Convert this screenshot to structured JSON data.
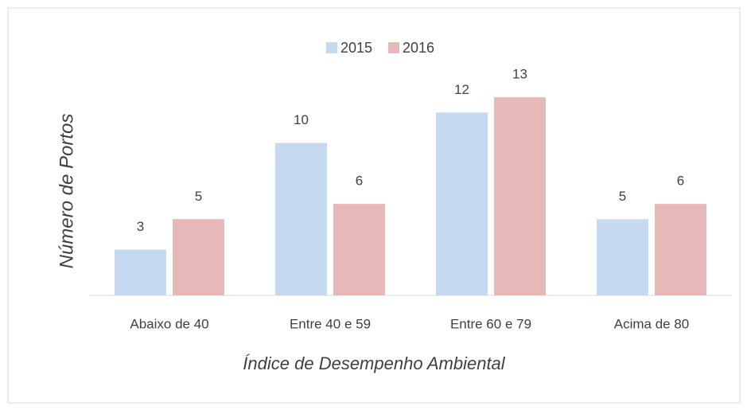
{
  "chart_data": {
    "type": "bar",
    "x_label": "Índice de Desempenho Ambiental",
    "y_label": "Número  de  Portos",
    "categories": [
      "Abaixo de 40",
      "Entre 40 e 59",
      "Entre 60 e 79",
      "Acima de 80"
    ],
    "series": [
      {
        "name": "2015",
        "color": "#c5d9f1",
        "values": [
          3,
          10,
          12,
          5
        ]
      },
      {
        "name": "2016",
        "color": "#e6b8b7",
        "values": [
          5,
          6,
          13,
          6
        ]
      }
    ],
    "ylim": [
      0,
      14
    ],
    "legend": "top"
  }
}
